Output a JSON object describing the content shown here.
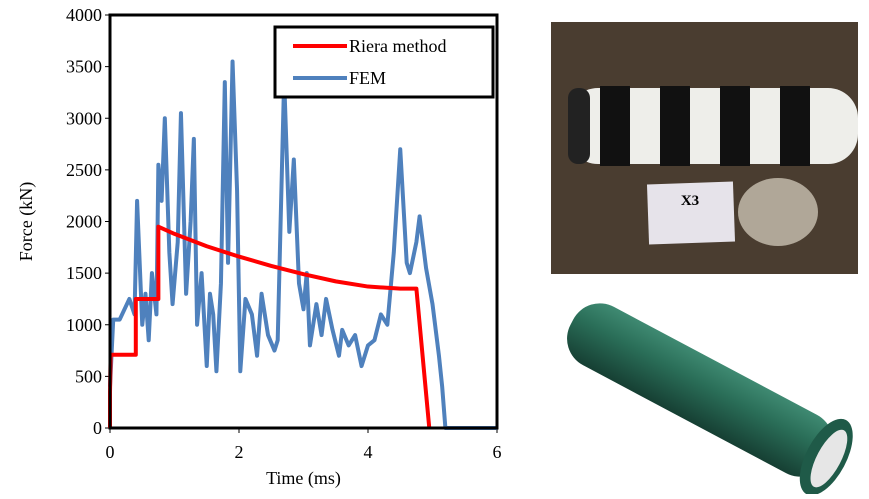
{
  "chart_data": {
    "type": "line",
    "xlabel": "Time (ms)",
    "ylabel": "Force (kN)",
    "xlim": [
      0,
      6
    ],
    "xticks": [
      0,
      2,
      4,
      6
    ],
    "ylim": [
      0,
      4000
    ],
    "yticks": [
      0,
      500,
      1000,
      1500,
      2000,
      2500,
      3000,
      3500,
      4000
    ],
    "legend": "upper right",
    "series": [
      {
        "name": "Riera method",
        "color": "#ff0000",
        "x": [
          0,
          0,
          0.01,
          0.4,
          0.4,
          0.75,
          0.75,
          1,
          1.5,
          2,
          2.5,
          3,
          3.5,
          4,
          4.5,
          4.75,
          4.95
        ],
        "values": [
          0,
          350,
          710,
          710,
          1250,
          1250,
          1950,
          1880,
          1760,
          1660,
          1570,
          1490,
          1420,
          1370,
          1350,
          1350,
          0
        ]
      },
      {
        "name": "FEM",
        "color": "#4f81bd",
        "x": [
          0,
          0.05,
          0.15,
          0.3,
          0.38,
          0.42,
          0.5,
          0.55,
          0.6,
          0.65,
          0.72,
          0.75,
          0.8,
          0.85,
          0.92,
          0.97,
          1.05,
          1.1,
          1.18,
          1.25,
          1.3,
          1.35,
          1.42,
          1.5,
          1.55,
          1.6,
          1.65,
          1.72,
          1.78,
          1.83,
          1.9,
          1.97,
          2.02,
          2.1,
          2.2,
          2.28,
          2.35,
          2.45,
          2.55,
          2.6,
          2.7,
          2.78,
          2.85,
          2.93,
          3.0,
          3.05,
          3.1,
          3.2,
          3.28,
          3.35,
          3.45,
          3.55,
          3.6,
          3.7,
          3.8,
          3.9,
          4.0,
          4.1,
          4.2,
          4.3,
          4.4,
          4.5,
          4.6,
          4.65,
          4.75,
          4.8,
          4.9,
          5.0,
          5.1,
          5.15,
          5.2,
          6
        ],
        "values": [
          400,
          1050,
          1050,
          1250,
          1100,
          2200,
          1000,
          1300,
          850,
          1500,
          1100,
          2550,
          2200,
          3000,
          1700,
          1200,
          1800,
          3050,
          1300,
          2000,
          2800,
          1000,
          1500,
          600,
          1300,
          1100,
          550,
          1400,
          3350,
          1600,
          3550,
          2300,
          550,
          1250,
          1100,
          700,
          1300,
          900,
          750,
          850,
          3380,
          1900,
          2600,
          1400,
          1150,
          1500,
          800,
          1200,
          900,
          1250,
          950,
          700,
          950,
          800,
          900,
          600,
          800,
          850,
          1100,
          1000,
          1700,
          2700,
          1600,
          1500,
          1800,
          2050,
          1550,
          1200,
          700,
          400,
          0,
          0
        ]
      }
    ]
  },
  "photo_label": "X3"
}
